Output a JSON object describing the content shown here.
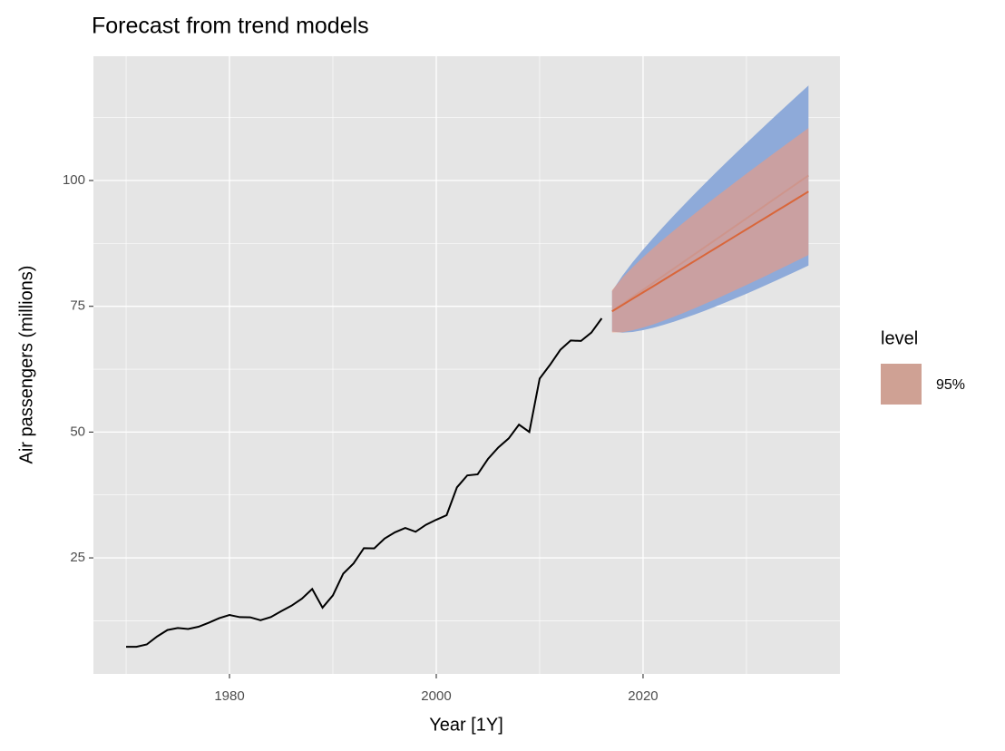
{
  "chart_data": {
    "type": "line",
    "title": "Forecast from trend models",
    "x_label": "Year [1Y]",
    "y_label": "Air passengers (millions)",
    "x": [
      1970,
      1971,
      1972,
      1973,
      1974,
      1975,
      1976,
      1977,
      1978,
      1979,
      1980,
      1981,
      1982,
      1983,
      1984,
      1985,
      1986,
      1987,
      1988,
      1989,
      1990,
      1991,
      1992,
      1993,
      1994,
      1995,
      1996,
      1997,
      1998,
      1999,
      2000,
      2001,
      2002,
      2003,
      2004,
      2005,
      2006,
      2007,
      2008,
      2009,
      2010,
      2011,
      2012,
      2013,
      2014,
      2015,
      2016
    ],
    "series": [
      {
        "color": "#000000",
        "values": [
          7.32,
          7.33,
          7.8,
          9.38,
          10.66,
          11.06,
          10.86,
          11.31,
          12.12,
          13.02,
          13.65,
          13.22,
          13.19,
          12.6,
          13.24,
          14.41,
          15.5,
          16.88,
          18.82,
          15.11,
          17.55,
          21.86,
          23.89,
          26.93,
          26.89,
          28.83,
          30.08,
          30.95,
          30.19,
          31.58,
          32.58,
          33.48,
          39.02,
          41.39,
          41.6,
          44.66,
          46.95,
          48.73,
          51.49,
          50.03,
          60.64,
          63.36,
          66.36,
          68.2,
          68.12,
          69.78,
          72.6
        ]
      }
    ],
    "forecast_x": [
      2017,
      2018,
      2019,
      2020,
      2021,
      2022,
      2023,
      2024,
      2025,
      2026,
      2027,
      2028,
      2029,
      2030,
      2031,
      2032,
      2033,
      2034,
      2035,
      2036
    ],
    "intervals": [
      {
        "line_color": "#9a8fa6",
        "fill_color": "#8eaad9",
        "opacity": 1,
        "mean": [
          74.0,
          75.42,
          76.84,
          78.26,
          79.68,
          81.11,
          82.53,
          83.95,
          85.37,
          86.79,
          88.21,
          89.63,
          91.05,
          92.47,
          93.89,
          95.32,
          96.74,
          98.16,
          99.58,
          101.0
        ],
        "lower": [
          70.0,
          69.76,
          69.91,
          70.26,
          70.74,
          71.31,
          71.95,
          72.64,
          73.37,
          74.14,
          74.94,
          75.77,
          76.63,
          77.5,
          78.4,
          79.32,
          80.25,
          81.19,
          82.14,
          83.11
        ],
        "upper": [
          78.0,
          81.08,
          83.77,
          86.26,
          88.62,
          90.91,
          93.11,
          95.26,
          97.37,
          99.44,
          101.48,
          103.49,
          105.47,
          107.44,
          109.38,
          111.32,
          113.23,
          115.13,
          117.02,
          118.89
        ]
      },
      {
        "line_color": "#d9663a",
        "fill_color": "#f29a7c",
        "opacity": 0.6,
        "mean": [
          74.0,
          75.25,
          76.51,
          77.76,
          79.01,
          80.27,
          81.52,
          82.77,
          84.02,
          85.28,
          86.53,
          87.78,
          89.04,
          90.29,
          91.54,
          92.8,
          94.05,
          95.3,
          96.55,
          97.81
        ],
        "lower": [
          69.8,
          69.84,
          70.23,
          70.77,
          71.42,
          72.16,
          72.94,
          73.76,
          74.62,
          75.5,
          76.4,
          77.33,
          78.28,
          79.22,
          80.19,
          81.17,
          82.17,
          83.17,
          84.18,
          85.19
        ],
        "upper": [
          78.2,
          80.66,
          82.79,
          84.75,
          86.6,
          88.38,
          90.1,
          91.78,
          93.42,
          95.06,
          96.66,
          98.23,
          99.8,
          101.36,
          102.89,
          104.43,
          105.93,
          107.43,
          108.92,
          110.43
        ]
      }
    ],
    "legend": {
      "title": "level",
      "label": "95%",
      "color": "#cfa194"
    },
    "xlim": [
      1966.84,
      2039.04
    ],
    "ylim": [
      1.94,
      124.7
    ],
    "xticks": [
      1980,
      2000,
      2020
    ],
    "yticks": [
      25,
      50,
      75,
      100
    ],
    "x_minor_grid": [
      1970,
      1990,
      2010,
      2030
    ],
    "y_minor_grid": [
      12.5,
      37.5,
      62.5,
      87.5,
      112.5
    ],
    "grid": true,
    "panel_color": "#e5e5e5"
  }
}
